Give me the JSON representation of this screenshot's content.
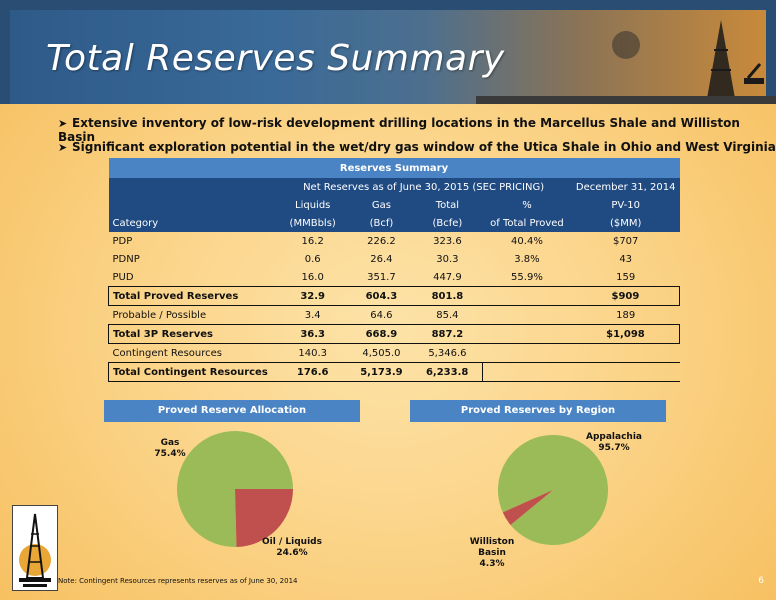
{
  "slide": {
    "title": "Total Reserves Summary",
    "bullets": [
      "Extensive inventory of low-risk development drilling locations in the Marcellus Shale and Williston Basin",
      "Significant exploration potential in the wet/dry gas window of the Utica Shale in Ohio and West Virginia"
    ],
    "note": "Note: Contingent Resources represents reserves as of June 30, 2014",
    "page_number": "6"
  },
  "table": {
    "title": "Reserves Summary",
    "group_headers": {
      "net_reserves": "Net Reserves as of June 30, 2015 (SEC PRICING)",
      "december": "December 31, 2014"
    },
    "col_headers_1": [
      "Liquids",
      "Gas",
      "Total",
      "%",
      "PV-10"
    ],
    "col_headers_2": [
      "Category",
      "(MMBbls)",
      "(Bcf)",
      "(Bcfe)",
      "of Total Proved",
      "($MM)"
    ],
    "rows": [
      {
        "category": "PDP",
        "liquids": "16.2",
        "gas": "226.2",
        "total": "323.6",
        "pct": "40.4%",
        "pv10": "$707"
      },
      {
        "category": "PDNP",
        "liquids": "0.6",
        "gas": "26.4",
        "total": "30.3",
        "pct": "3.8%",
        "pv10": "43"
      },
      {
        "category": "PUD",
        "liquids": "16.0",
        "gas": "351.7",
        "total": "447.9",
        "pct": "55.9%",
        "pv10": "159"
      },
      {
        "category": "Total Proved Reserves",
        "liquids": "32.9",
        "gas": "604.3",
        "total": "801.8",
        "pct": "",
        "pv10": "$909"
      },
      {
        "category": "Probable / Possible",
        "liquids": "3.4",
        "gas": "64.6",
        "total": "85.4",
        "pct": "",
        "pv10": "189"
      },
      {
        "category": "Total 3P Reserves",
        "liquids": "36.3",
        "gas": "668.9",
        "total": "887.2",
        "pct": "",
        "pv10": "$1,098"
      },
      {
        "category": "Contingent Resources",
        "liquids": "140.3",
        "gas": "4,505.0",
        "total": "5,346.6",
        "pct": "",
        "pv10": ""
      },
      {
        "category": "Total Contingent Resources",
        "liquids": "176.6",
        "gas": "5,173.9",
        "total": "6,233.8",
        "pct": "",
        "pv10": ""
      }
    ]
  },
  "colors": {
    "pie_green": "#9bbb59",
    "pie_red": "#c0504d",
    "header_dark": "#1f4a82",
    "header_light": "#4a84c4"
  },
  "chart_data": [
    {
      "type": "pie",
      "title": "Proved Reserve Allocation",
      "labels": [
        "Gas",
        "Oil / Liquids"
      ],
      "values": [
        75.4,
        24.6
      ],
      "value_labels": [
        "75.4%",
        "24.6%"
      ]
    },
    {
      "type": "pie",
      "title": "Proved Reserves by Region",
      "labels": [
        "Appalachia",
        "Williston Basin"
      ],
      "values": [
        95.7,
        4.3
      ],
      "value_labels": [
        "95.7%",
        "4.3%"
      ]
    }
  ]
}
